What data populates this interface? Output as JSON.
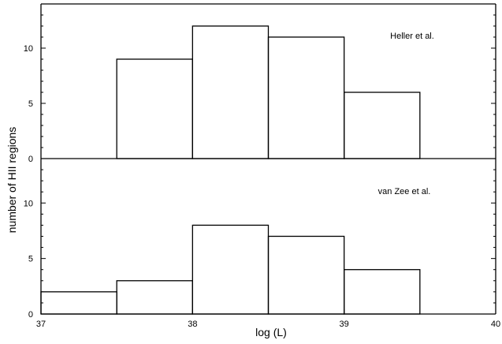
{
  "chart_data": [
    {
      "type": "bar",
      "annotation": "Heller et al.",
      "bin_edges": [
        37,
        37.5,
        38,
        38.5,
        39,
        39.5,
        40
      ],
      "values": [
        0,
        9,
        12,
        11,
        6,
        0
      ],
      "ylim": [
        0,
        14
      ],
      "yticks": [
        0,
        5,
        10
      ],
      "xlim": [
        37,
        40
      ]
    },
    {
      "type": "bar",
      "annotation": "van Zee et al.",
      "bin_edges": [
        37,
        37.5,
        38,
        38.5,
        39,
        39.5,
        40
      ],
      "values": [
        2,
        3,
        8,
        7,
        4,
        0
      ],
      "ylim": [
        0,
        14
      ],
      "yticks": [
        0,
        5,
        10
      ],
      "xlim": [
        37,
        40
      ],
      "xticks": [
        37,
        38,
        39,
        40
      ]
    }
  ],
  "axes": {
    "xlabel": "log (L)",
    "ylabel": "number of HII regions"
  }
}
